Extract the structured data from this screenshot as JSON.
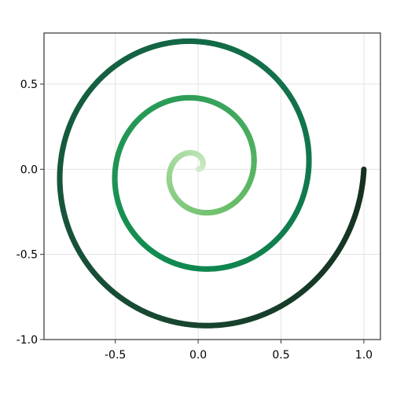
{
  "chart_data": {
    "type": "line",
    "title": "",
    "xlabel": "",
    "ylabel": "",
    "xlim": [
      -0.93,
      1.1
    ],
    "ylim": [
      -1.0,
      0.8
    ],
    "x_ticks": [
      {
        "value": -0.5,
        "label": "-0.5"
      },
      {
        "value": 0.0,
        "label": "0.0"
      },
      {
        "value": 0.5,
        "label": "0.5"
      },
      {
        "value": 1.0,
        "label": "1.0"
      }
    ],
    "y_ticks": [
      {
        "value": -1.0,
        "label": "-1.0"
      },
      {
        "value": -0.5,
        "label": "-0.5"
      },
      {
        "value": 0.0,
        "label": "0.0"
      },
      {
        "value": 0.5,
        "label": "0.5"
      }
    ],
    "grid": true,
    "legend": "none",
    "series": [
      {
        "curve": "spiral",
        "radius_start": 0.0,
        "radius_end": 1.0,
        "turns": 3.0,
        "end_point": [
          1.0,
          0.0
        ],
        "colormap": [
          "#d8efd0",
          "#a8dca0",
          "#6cbf6a",
          "#2e9e58",
          "#0f8a50",
          "#12704a",
          "#17533a",
          "#16301f"
        ]
      }
    ]
  }
}
